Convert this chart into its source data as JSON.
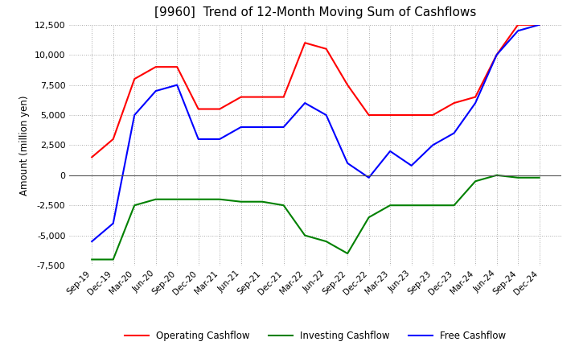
{
  "title": "[9960]  Trend of 12-Month Moving Sum of Cashflows",
  "ylabel": "Amount (million yen)",
  "background_color": "#ffffff",
  "grid_color": "#aaaaaa",
  "x_labels": [
    "Sep-19",
    "Dec-19",
    "Mar-20",
    "Jun-20",
    "Sep-20",
    "Dec-20",
    "Mar-21",
    "Jun-21",
    "Sep-21",
    "Dec-21",
    "Mar-22",
    "Jun-22",
    "Sep-22",
    "Dec-22",
    "Mar-23",
    "Jun-23",
    "Sep-23",
    "Dec-23",
    "Mar-24",
    "Jun-24",
    "Sep-24",
    "Dec-24"
  ],
  "operating_cashflow": [
    1500,
    3000,
    8000,
    9000,
    9000,
    5500,
    5500,
    6500,
    6500,
    6500,
    11000,
    10500,
    7500,
    5000,
    5000,
    5000,
    5000,
    6000,
    6500,
    10000,
    12500,
    12500
  ],
  "investing_cashflow": [
    -7000,
    -7000,
    -2500,
    -2000,
    -2000,
    -2000,
    -2000,
    -2200,
    -2200,
    -2500,
    -5000,
    -5500,
    -6500,
    -3500,
    -2500,
    -2500,
    -2500,
    -2500,
    -500,
    0,
    -200,
    -200
  ],
  "free_cashflow": [
    -5500,
    -4000,
    5000,
    7000,
    7500,
    3000,
    3000,
    4000,
    4000,
    4000,
    6000,
    5000,
    1000,
    -200,
    2000,
    800,
    2500,
    3500,
    6000,
    10000,
    12000,
    12500
  ],
  "operating_color": "#ff0000",
  "investing_color": "#008000",
  "free_color": "#0000ff",
  "ylim": [
    -7500,
    12500
  ],
  "yticks": [
    -7500,
    -5000,
    -2500,
    0,
    2500,
    5000,
    7500,
    10000,
    12500
  ]
}
